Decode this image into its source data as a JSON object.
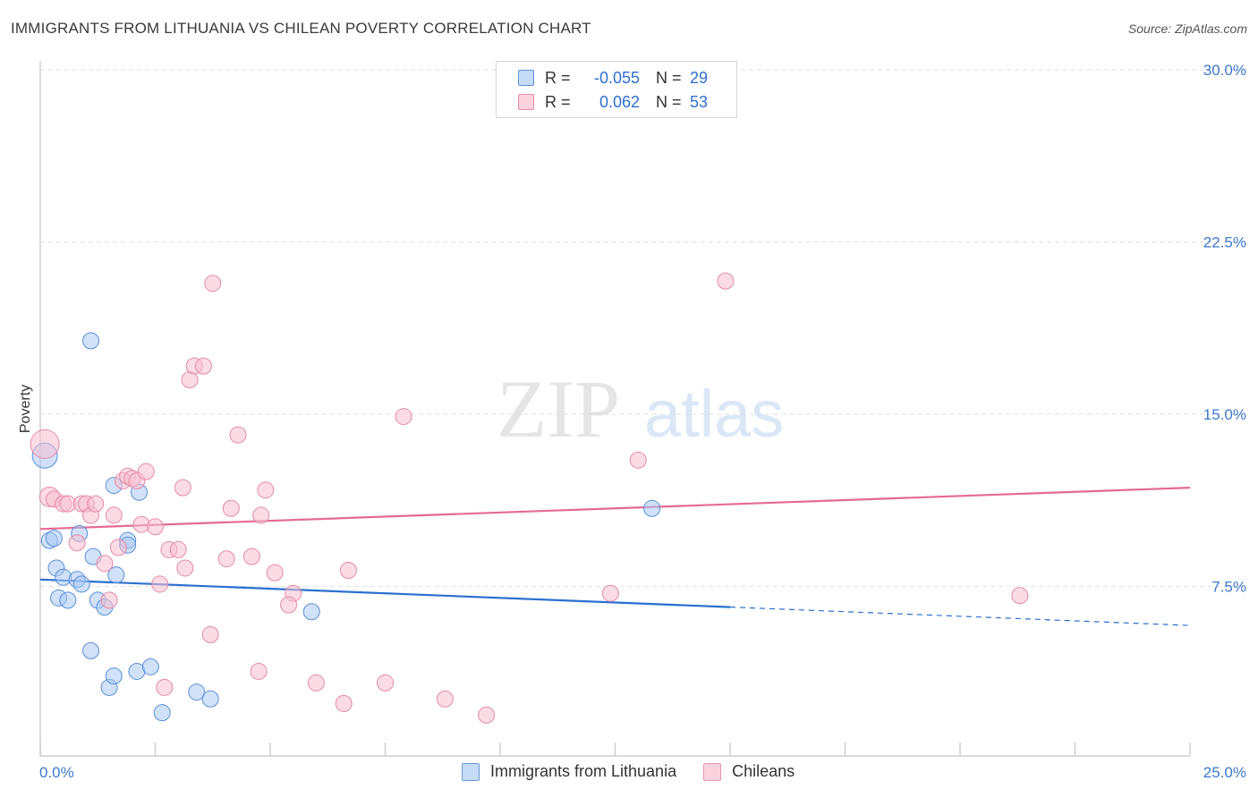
{
  "header": {
    "title": "IMMIGRANTS FROM LITHUANIA VS CHILEAN POVERTY CORRELATION CHART",
    "source": "Source: ZipAtlas.com"
  },
  "watermark": {
    "zip": "ZIP",
    "atlas": "atlas"
  },
  "legend": {
    "series": [
      {
        "r_label": "R =",
        "r_value": "-0.055",
        "n_label": "N =",
        "n_value": "29",
        "color": "#a9c8f2",
        "border": "#5b8fd8"
      },
      {
        "r_label": "R =",
        "r_value": "0.062",
        "n_label": "N =",
        "n_value": "53",
        "color": "#f7c0d0",
        "border": "#e48aa6"
      }
    ]
  },
  "bottom_legend": [
    {
      "label": "Immigrants from Lithuania",
      "color": "#c6dbf7",
      "border": "#6a98d8"
    },
    {
      "label": "Chileans",
      "color": "#fbd3de",
      "border": "#e794ad"
    }
  ],
  "chart_data": {
    "type": "scatter",
    "title": "IMMIGRANTS FROM LITHUANIA VS CHILEAN POVERTY CORRELATION CHART",
    "xlabel": "",
    "ylabel": "Poverty",
    "xlim": [
      0,
      25
    ],
    "ylim": [
      0,
      30
    ],
    "x_tick_labels": [
      "0.0%",
      "25.0%"
    ],
    "y_ticks": [
      7.5,
      15.0,
      22.5,
      30.0
    ],
    "y_tick_labels": [
      "7.5%",
      "15.0%",
      "22.5%",
      "30.0%"
    ],
    "grid": true,
    "series": [
      {
        "name": "Immigrants from Lithuania",
        "color": "#a9c8f2",
        "stroke": "#5b8fd8",
        "trend_color": "#2a6fcf",
        "trend": {
          "x0": 0,
          "y0": 7.8,
          "x1": 15.0,
          "y1": 6.6,
          "dash_to_x": 25.0,
          "dash_to_y": 5.8
        },
        "points": [
          [
            0.1,
            13.2,
            14
          ],
          [
            0.2,
            9.5,
            9
          ],
          [
            0.3,
            9.6,
            9
          ],
          [
            0.35,
            8.3,
            9
          ],
          [
            0.4,
            7.0,
            9
          ],
          [
            0.5,
            7.9,
            9
          ],
          [
            0.6,
            6.9,
            9
          ],
          [
            0.8,
            7.8,
            9
          ],
          [
            0.9,
            7.6,
            9
          ],
          [
            0.85,
            9.8,
            9
          ],
          [
            1.1,
            4.7,
            9
          ],
          [
            1.1,
            18.2,
            9
          ],
          [
            1.15,
            8.8,
            9
          ],
          [
            1.25,
            6.9,
            9
          ],
          [
            1.4,
            6.6,
            9
          ],
          [
            1.5,
            3.1,
            9
          ],
          [
            1.6,
            3.6,
            9
          ],
          [
            1.65,
            8.0,
            9
          ],
          [
            1.6,
            11.9,
            9
          ],
          [
            1.9,
            9.5,
            9
          ],
          [
            1.9,
            9.3,
            9
          ],
          [
            2.15,
            11.6,
            9
          ],
          [
            2.1,
            3.8,
            9
          ],
          [
            2.4,
            4.0,
            9
          ],
          [
            2.65,
            2.0,
            9
          ],
          [
            3.4,
            2.9,
            9
          ],
          [
            3.7,
            2.6,
            9
          ],
          [
            5.9,
            6.4,
            9
          ],
          [
            13.3,
            10.9,
            9
          ]
        ]
      },
      {
        "name": "Chileans",
        "color": "#f7c0d0",
        "stroke": "#e48aa6",
        "trend_color": "#e56a93",
        "trend": {
          "x0": 0,
          "y0": 10.0,
          "x1": 25.0,
          "y1": 11.8
        },
        "points": [
          [
            0.1,
            13.7,
            16
          ],
          [
            0.2,
            11.4,
            11
          ],
          [
            0.3,
            11.3,
            9
          ],
          [
            0.5,
            11.1,
            9
          ],
          [
            0.6,
            11.1,
            9
          ],
          [
            0.9,
            11.1,
            9
          ],
          [
            0.8,
            9.4,
            9
          ],
          [
            1.0,
            11.1,
            9
          ],
          [
            1.1,
            10.6,
            9
          ],
          [
            1.2,
            11.1,
            9
          ],
          [
            1.4,
            8.5,
            9
          ],
          [
            1.5,
            6.9,
            9
          ],
          [
            1.6,
            10.6,
            9
          ],
          [
            1.7,
            9.2,
            9
          ],
          [
            1.8,
            12.1,
            9
          ],
          [
            1.9,
            12.3,
            9
          ],
          [
            2.0,
            12.2,
            9
          ],
          [
            2.1,
            12.1,
            9
          ],
          [
            2.2,
            10.2,
            9
          ],
          [
            2.3,
            12.5,
            9
          ],
          [
            2.5,
            10.1,
            9
          ],
          [
            2.6,
            7.6,
            9
          ],
          [
            2.7,
            3.1,
            9
          ],
          [
            2.8,
            9.1,
            9
          ],
          [
            3.0,
            9.1,
            9
          ],
          [
            3.1,
            11.8,
            9
          ],
          [
            3.15,
            8.3,
            9
          ],
          [
            3.25,
            16.5,
            9
          ],
          [
            3.35,
            17.1,
            9
          ],
          [
            3.55,
            17.1,
            9
          ],
          [
            3.7,
            5.4,
            9
          ],
          [
            3.75,
            20.7,
            9
          ],
          [
            4.05,
            8.7,
            9
          ],
          [
            4.15,
            10.9,
            9
          ],
          [
            4.3,
            14.1,
            9
          ],
          [
            4.6,
            8.8,
            9
          ],
          [
            4.8,
            10.6,
            9
          ],
          [
            4.75,
            3.8,
            9
          ],
          [
            4.9,
            11.7,
            9
          ],
          [
            5.1,
            8.1,
            9
          ],
          [
            5.5,
            7.2,
            9
          ],
          [
            5.4,
            6.7,
            9
          ],
          [
            6.0,
            3.3,
            9
          ],
          [
            6.6,
            2.4,
            9
          ],
          [
            6.7,
            8.2,
            9
          ],
          [
            7.5,
            3.3,
            9
          ],
          [
            7.9,
            14.9,
            9
          ],
          [
            8.8,
            2.6,
            9
          ],
          [
            9.7,
            1.9,
            9
          ],
          [
            12.4,
            7.2,
            9
          ],
          [
            13.0,
            13.0,
            9
          ],
          [
            14.9,
            20.8,
            9
          ],
          [
            21.3,
            7.1,
            9
          ]
        ]
      }
    ]
  }
}
